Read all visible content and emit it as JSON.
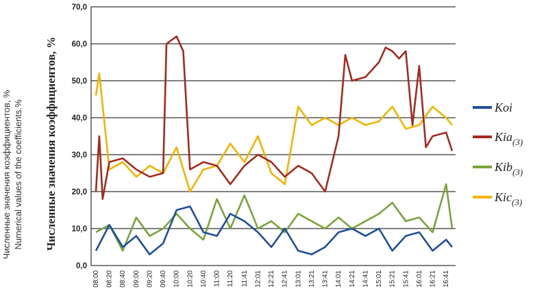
{
  "chart_data": {
    "type": "line",
    "ylabel_outer_line1": "Численные значения коэффициентов, %",
    "ylabel_outer_line2": "Numerical values of the coefficients.%",
    "ylabel_inner": "Численные значения коэффициентов, %",
    "ylim": [
      0,
      70
    ],
    "yticks": [
      "0,0",
      "10,0",
      "20,0",
      "30,0",
      "40,0",
      "50,0",
      "60,0",
      "70,0"
    ],
    "grid": true,
    "legend_position": "right",
    "x_tick_labels": [
      "08:00",
      "08:20",
      "08:40",
      "09:00",
      "09:20",
      "09:40",
      "10:00",
      "10:20",
      "10:40",
      "11:00",
      "11:20",
      "11:41",
      "12:01",
      "12:21",
      "12:41",
      "13:01",
      "13:21",
      "13:41",
      "14:01",
      "14:21",
      "14:41",
      "15:01",
      "15:21",
      "15:41",
      "16:01",
      "16:21",
      "16:41"
    ],
    "legend": [
      {
        "main": "Koi",
        "sub": ""
      },
      {
        "main": "Kia",
        "sub": "(3)"
      },
      {
        "main": "Kib",
        "sub": "(3)"
      },
      {
        "main": "Kic",
        "sub": "(3)"
      }
    ],
    "colors": {
      "Koi": "#1f4e9c",
      "Kia": "#a52a1e",
      "Kib": "#7aa33a",
      "Kic": "#f2b400"
    },
    "series": [
      {
        "name": "Koi",
        "x": [
          "08:00",
          "08:20",
          "08:40",
          "09:00",
          "09:20",
          "09:40",
          "10:00",
          "10:20",
          "10:40",
          "11:00",
          "11:20",
          "11:41",
          "12:01",
          "12:21",
          "12:41",
          "13:01",
          "13:21",
          "13:41",
          "14:01",
          "14:21",
          "14:41",
          "15:01",
          "15:21",
          "15:41",
          "16:01",
          "16:21",
          "16:41",
          "16:50"
        ],
        "values": [
          4,
          11,
          5,
          8,
          3,
          6,
          15,
          16,
          9,
          8,
          14,
          12,
          9,
          5,
          10,
          4,
          3,
          5,
          9,
          10,
          8,
          10,
          4,
          8,
          9,
          4,
          7,
          5
        ]
      },
      {
        "name": "Kia",
        "x": [
          "08:00",
          "08:05",
          "08:10",
          "08:20",
          "08:40",
          "09:00",
          "09:20",
          "09:40",
          "09:45",
          "10:00",
          "10:10",
          "10:20",
          "10:40",
          "11:00",
          "11:20",
          "11:41",
          "12:01",
          "12:21",
          "12:41",
          "13:01",
          "13:21",
          "13:41",
          "14:01",
          "14:11",
          "14:21",
          "14:41",
          "15:01",
          "15:11",
          "15:21",
          "15:31",
          "15:41",
          "15:51",
          "16:01",
          "16:11",
          "16:21",
          "16:41",
          "16:50"
        ],
        "values": [
          20,
          35,
          18,
          28,
          29,
          26,
          24,
          25,
          60,
          62,
          58,
          26,
          28,
          27,
          22,
          27,
          30,
          28,
          24,
          27,
          25,
          20,
          35,
          57,
          50,
          51,
          55,
          59,
          58,
          56,
          58,
          38,
          54,
          32,
          35,
          36,
          31
        ]
      },
      {
        "name": "Kib",
        "x": [
          "08:00",
          "08:20",
          "08:40",
          "09:00",
          "09:20",
          "09:40",
          "10:00",
          "10:20",
          "10:40",
          "11:00",
          "11:20",
          "11:41",
          "12:01",
          "12:21",
          "12:41",
          "13:01",
          "13:21",
          "13:41",
          "14:01",
          "14:21",
          "14:41",
          "15:01",
          "15:21",
          "15:41",
          "16:01",
          "16:21",
          "16:41",
          "16:50"
        ],
        "values": [
          9,
          11,
          4,
          13,
          8,
          10,
          14,
          10,
          7,
          18,
          10,
          19,
          10,
          12,
          9,
          14,
          12,
          10,
          13,
          10,
          12,
          14,
          17,
          12,
          13,
          9,
          22,
          10
        ]
      },
      {
        "name": "Kic",
        "x": [
          "08:00",
          "08:05",
          "08:20",
          "08:40",
          "09:00",
          "09:20",
          "09:40",
          "10:00",
          "10:20",
          "10:40",
          "11:00",
          "11:20",
          "11:41",
          "12:01",
          "12:21",
          "12:41",
          "13:01",
          "13:21",
          "13:41",
          "14:01",
          "14:21",
          "14:41",
          "15:01",
          "15:21",
          "15:41",
          "16:01",
          "16:21",
          "16:41",
          "16:50"
        ],
        "values": [
          46,
          52,
          26,
          28,
          24,
          27,
          25,
          32,
          20,
          26,
          27,
          33,
          28,
          35,
          25,
          22,
          43,
          38,
          40,
          38,
          40,
          38,
          39,
          43,
          37,
          38,
          43,
          40,
          38
        ]
      }
    ]
  }
}
